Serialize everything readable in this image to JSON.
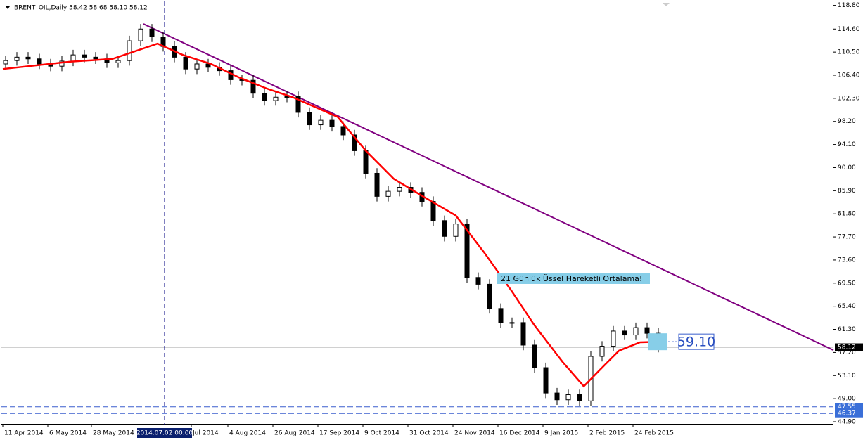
{
  "chart_data": {
    "type": "candlestick",
    "title": "BRENT_OIL,Daily  58.42 58.68 58.10 58.12",
    "xlim": [
      0,
      296.25
    ],
    "ylim": [
      44.4,
      119.5
    ],
    "xticks": [
      {
        "value": 1,
        "label": "11 Apr 2014"
      },
      {
        "value": 17,
        "label": "6 May 2014"
      },
      {
        "value": 32.5,
        "label": "28 May 2014"
      },
      {
        "value": 68,
        "label": "Jul 2014"
      },
      {
        "value": 81,
        "label": "4 Aug 2014"
      },
      {
        "value": 97,
        "label": "26 Aug 2014"
      },
      {
        "value": 113,
        "label": "17 Sep 2014"
      },
      {
        "value": 129,
        "label": "9 Oct 2014"
      },
      {
        "value": 145,
        "label": "31 Oct 2014"
      },
      {
        "value": 161,
        "label": "24 Nov 2014"
      },
      {
        "value": 177,
        "label": "16 Dec 2014"
      },
      {
        "value": 193,
        "label": "9 Jan 2015"
      },
      {
        "value": 209,
        "label": "2 Feb 2015"
      },
      {
        "value": 225,
        "label": "24 Feb 2015"
      }
    ],
    "yticks": [
      {
        "value": 44.9,
        "label": "44.90"
      },
      {
        "value": 49,
        "label": "49.00"
      },
      {
        "value": 53.1,
        "label": "53.10"
      },
      {
        "value": 57.2,
        "label": "57.20"
      },
      {
        "value": 61.3,
        "label": "61.30"
      },
      {
        "value": 65.4,
        "label": "65.40"
      },
      {
        "value": 69.5,
        "label": "69.50"
      },
      {
        "value": 73.6,
        "label": "73.60"
      },
      {
        "value": 77.7,
        "label": "77.70"
      },
      {
        "value": 81.8,
        "label": "81.80"
      },
      {
        "value": 85.9,
        "label": "85.90"
      },
      {
        "value": 90,
        "label": "90.00"
      },
      {
        "value": 94.1,
        "label": "94.10"
      },
      {
        "value": 98.2,
        "label": "98.20"
      },
      {
        "value": 102.3,
        "label": "102.30"
      },
      {
        "value": 106.4,
        "label": "106.40"
      },
      {
        "value": 110.5,
        "label": "110.50"
      },
      {
        "value": 114.6,
        "label": "114.60"
      },
      {
        "value": 118.8,
        "label": "118.80"
      }
    ],
    "x": [
      2,
      6,
      10,
      14,
      18,
      22,
      26,
      30,
      34,
      38,
      42,
      46,
      50,
      54,
      58,
      62,
      66,
      70,
      74,
      78,
      82,
      86,
      90,
      94,
      98,
      102,
      106,
      110,
      114,
      118,
      122,
      126,
      130,
      134,
      138,
      142,
      146,
      150,
      154,
      158,
      162,
      166,
      170,
      174,
      178,
      182,
      186,
      190,
      194,
      198,
      202,
      206,
      210,
      214,
      218,
      222,
      226,
      230,
      234
    ],
    "open": [
      108.4,
      109.0,
      109.6,
      109.3,
      108.4,
      108.0,
      108.9,
      110.0,
      109.6,
      109.3,
      108.6,
      109.0,
      112.5,
      114.6,
      113.2,
      111.5,
      109.6,
      107.5,
      108.4,
      107.8,
      107.2,
      105.6,
      105.5,
      103.2,
      101.9,
      102.5,
      102.6,
      99.8,
      97.6,
      98.4,
      97.3,
      95.8,
      93.0,
      89.0,
      84.9,
      85.8,
      86.5,
      85.6,
      84.0,
      80.6,
      77.8,
      80.0,
      70.5,
      69.3,
      65.0,
      62.5,
      62.5,
      58.5,
      54.5,
      50.0,
      48.8,
      49.7,
      48.6,
      56.5,
      58.3,
      61.0,
      60.3,
      61.6,
      60.6
    ],
    "high": [
      109.9,
      110.5,
      110.5,
      110.2,
      109.3,
      109.8,
      110.9,
      110.9,
      110.5,
      110.2,
      109.9,
      113.4,
      115.5,
      115.5,
      114.1,
      112.4,
      110.5,
      109.3,
      109.3,
      108.7,
      108.1,
      106.5,
      106.4,
      104.1,
      103.4,
      103.5,
      103.5,
      100.7,
      99.3,
      99.3,
      98.2,
      96.7,
      93.9,
      89.9,
      86.7,
      87.4,
      87.4,
      86.5,
      84.9,
      81.5,
      80.9,
      80.9,
      71.4,
      70.2,
      65.9,
      63.4,
      63.4,
      59.4,
      55.4,
      50.9,
      50.6,
      50.6,
      57.4,
      59.2,
      61.9,
      61.9,
      62.5,
      62.5,
      61.5
    ],
    "low": [
      107.5,
      108.1,
      108.4,
      107.5,
      107.1,
      107.1,
      108.0,
      108.7,
      108.4,
      107.7,
      107.7,
      108.1,
      111.6,
      112.3,
      110.6,
      108.7,
      106.6,
      106.6,
      106.9,
      106.3,
      104.7,
      104.6,
      102.3,
      101.0,
      101.0,
      101.6,
      98.9,
      96.7,
      96.7,
      96.4,
      94.9,
      92.1,
      88.1,
      84.0,
      84.0,
      84.9,
      84.7,
      83.1,
      79.7,
      76.9,
      76.9,
      69.6,
      68.4,
      64.1,
      61.6,
      61.6,
      57.6,
      53.6,
      49.1,
      47.9,
      47.9,
      47.7,
      47.7,
      55.6,
      57.4,
      59.4,
      59.4,
      59.7,
      57.22
    ],
    "close": [
      109.0,
      109.6,
      109.3,
      108.4,
      108.0,
      108.9,
      110.0,
      109.6,
      109.3,
      108.6,
      109.0,
      112.5,
      114.6,
      113.2,
      111.5,
      109.6,
      107.5,
      108.4,
      107.8,
      107.2,
      105.6,
      105.5,
      103.2,
      101.9,
      102.5,
      102.6,
      99.8,
      97.6,
      98.4,
      97.3,
      95.8,
      93.0,
      89.0,
      84.9,
      85.8,
      86.5,
      85.6,
      84.0,
      80.6,
      77.8,
      80.0,
      70.5,
      69.3,
      65.0,
      62.5,
      62.5,
      58.5,
      54.5,
      50.0,
      48.8,
      49.7,
      48.6,
      56.5,
      58.3,
      61.0,
      60.3,
      61.6,
      60.6,
      58.12
    ],
    "ema": {
      "color": "#ff0000",
      "x": [
        1,
        25,
        40,
        56,
        65,
        75,
        85,
        95,
        104,
        120,
        130,
        140,
        150,
        162,
        172,
        182,
        190,
        200,
        207.5,
        215,
        220,
        227.5,
        235
      ],
      "values": [
        107.5,
        108.8,
        109.3,
        112,
        110,
        108.4,
        106,
        104,
        102.5,
        99,
        93,
        88,
        85,
        81.5,
        75,
        68,
        62,
        55.5,
        51.2,
        55,
        57.5,
        59,
        59.1
      ]
    },
    "trendline": {
      "color": "#800080",
      "x": [
        51,
        296.25
      ],
      "values": [
        115.5,
        57.6
      ]
    },
    "crosshair": {
      "x": 58.5,
      "label": "2014.07.02 00:00"
    },
    "hlines": [
      {
        "value": 58.12,
        "style": "solid",
        "color": "#a0a0a0",
        "label_bg": "#000000"
      },
      {
        "value": 47.55,
        "style": "dashed",
        "color": "#3a5fcd",
        "label_bg": "#3a6fd8"
      },
      {
        "value": 46.37,
        "style": "dashed",
        "color": "#3a5fcd",
        "label_bg": "#3a6fd8"
      }
    ],
    "annotation": "21  Günlük Üssel Hareketli Ortalama!",
    "price_label": {
      "value": 59.1,
      "label": "59.10"
    }
  }
}
